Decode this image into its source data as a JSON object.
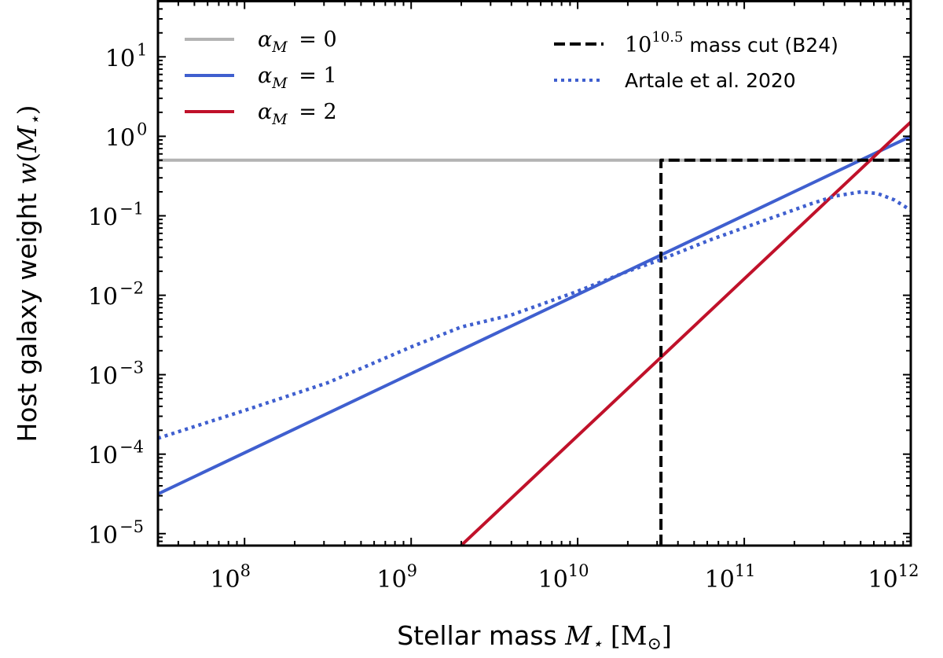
{
  "chart_data": {
    "type": "line",
    "title": "",
    "xlabel": {
      "text": "Stellar mass",
      "var": "M",
      "var_sub": "⋆",
      "unit_open": "[M",
      "unit_sub": "⊙",
      "unit_close": "]"
    },
    "ylabel": {
      "text": "Host galaxy weight",
      "var": "w",
      "paren_open": "(",
      "arg": "M",
      "arg_sub": "⋆",
      "paren_close": ")"
    },
    "xscale": "log",
    "yscale": "log",
    "xlim_log10": [
      7.48,
      12.0
    ],
    "ylim_log10": [
      -5.15,
      1.7
    ],
    "x_ticks": [
      {
        "base": "10",
        "exp": "8",
        "log": 8
      },
      {
        "base": "10",
        "exp": "9",
        "log": 9
      },
      {
        "base": "10",
        "exp": "10",
        "log": 10
      },
      {
        "base": "10",
        "exp": "11",
        "log": 11
      },
      {
        "base": "10",
        "exp": "12",
        "log": 12
      }
    ],
    "y_ticks": [
      {
        "base": "10",
        "exp": "−5",
        "log": -5
      },
      {
        "base": "10",
        "exp": "−4",
        "log": -4
      },
      {
        "base": "10",
        "exp": "−3",
        "log": -3
      },
      {
        "base": "10",
        "exp": "−2",
        "log": -2
      },
      {
        "base": "10",
        "exp": "−1",
        "log": -1
      },
      {
        "base": "10",
        "exp": "0",
        "log": 0
      },
      {
        "base": "10",
        "exp": "1",
        "log": 1
      }
    ],
    "series": [
      {
        "name": "alpha_M_0",
        "label_var": "α",
        "label_sub": "M",
        "label_rest": " = 0",
        "color": "#b3b3b3",
        "style": "solid",
        "points": [
          [
            7.48,
            -0.3
          ],
          [
            12.0,
            -0.3
          ]
        ]
      },
      {
        "name": "alpha_M_1",
        "label_var": "α",
        "label_sub": "M",
        "label_rest": " = 1",
        "color": "#3f5fcf",
        "style": "solid",
        "points": [
          [
            7.48,
            -4.5
          ],
          [
            12.0,
            0.0
          ]
        ]
      },
      {
        "name": "alpha_M_2",
        "label_var": "α",
        "label_sub": "M",
        "label_rest": " = 2",
        "color": "#c0112a",
        "style": "solid",
        "points": [
          [
            9.3,
            -5.15
          ],
          [
            12.0,
            0.18
          ]
        ]
      },
      {
        "name": "mass_cut",
        "label_var": "10",
        "label_sup": "10.5",
        "label_rest": " mass cut (B24)",
        "color": "#000000",
        "style": "dashed",
        "points": [
          [
            10.5,
            -5.15
          ],
          [
            10.5,
            -0.3
          ],
          [
            12.0,
            -0.3
          ]
        ]
      },
      {
        "name": "artale_2020",
        "label_text": "Artale et al. 2020",
        "color": "#3f5fcf",
        "style": "dotted",
        "points": [
          [
            7.48,
            -3.8
          ],
          [
            8.0,
            -3.45
          ],
          [
            8.5,
            -3.1
          ],
          [
            9.0,
            -2.65
          ],
          [
            9.3,
            -2.4
          ],
          [
            9.6,
            -2.25
          ],
          [
            9.8,
            -2.1
          ],
          [
            10.0,
            -1.95
          ],
          [
            10.3,
            -1.7
          ],
          [
            10.5,
            -1.55
          ],
          [
            10.8,
            -1.3
          ],
          [
            11.0,
            -1.15
          ],
          [
            11.2,
            -1.0
          ],
          [
            11.4,
            -0.85
          ],
          [
            11.55,
            -0.75
          ],
          [
            11.7,
            -0.7
          ],
          [
            11.8,
            -0.72
          ],
          [
            11.9,
            -0.8
          ],
          [
            12.0,
            -0.93
          ]
        ]
      }
    ],
    "legend_placement": "top"
  }
}
